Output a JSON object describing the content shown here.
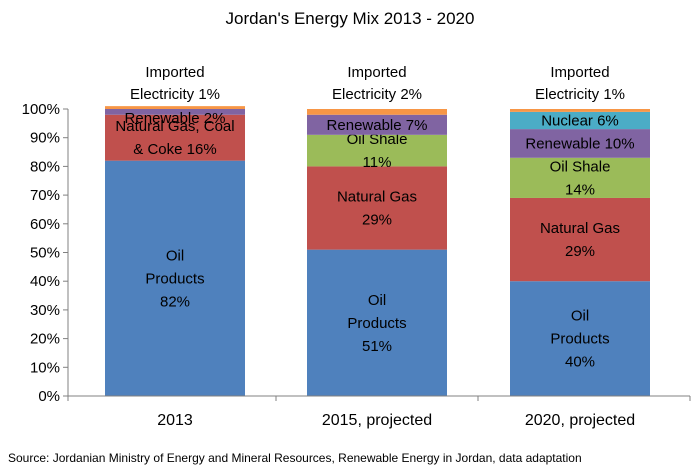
{
  "chart_data": {
    "type": "bar",
    "stacked": true,
    "title": "Jordan's Energy Mix 2013 - 2020",
    "xlabel": "",
    "ylabel": "",
    "ylim": [
      0,
      100
    ],
    "y_ticks": [
      "0%",
      "10%",
      "20%",
      "30%",
      "40%",
      "50%",
      "60%",
      "70%",
      "80%",
      "90%",
      "100%"
    ],
    "grid": false,
    "legend": "none",
    "categories": [
      "2013",
      "2015, projected",
      "2020, projected"
    ],
    "series": [
      {
        "key": "oil",
        "color": "#4f81bd",
        "values": [
          82,
          51,
          40
        ],
        "labels": [
          [
            "Oil",
            "Products",
            "82%"
          ],
          [
            "Oil",
            "Products",
            "51%"
          ],
          [
            "Oil",
            "Products",
            "40%"
          ]
        ]
      },
      {
        "key": "gas",
        "color": "#c0504d",
        "values": [
          16,
          29,
          29
        ],
        "labels": [
          [
            "Natural Gas, Coal",
            "& Coke 16%"
          ],
          [
            "Natural Gas",
            "29%"
          ],
          [
            "Natural Gas",
            "29%"
          ]
        ]
      },
      {
        "key": "shale",
        "color": "#9bbb59",
        "values": [
          0,
          11,
          14
        ],
        "labels": [
          [],
          [
            "Oil Shale",
            "11%"
          ],
          [
            "Oil Shale",
            "14%"
          ]
        ]
      },
      {
        "key": "renewable",
        "color": "#8064a2",
        "values": [
          2,
          7,
          10
        ],
        "labels": [
          [
            "Renewable 2%"
          ],
          [
            "Renewable 7%"
          ],
          [
            "Renewable 10%"
          ]
        ]
      },
      {
        "key": "nuclear",
        "color": "#4bacc6",
        "values": [
          0,
          0,
          6
        ],
        "labels": [
          [],
          [],
          [
            "Nuclear 6%"
          ]
        ]
      },
      {
        "key": "imported",
        "color": "#f79646",
        "values": [
          1,
          2,
          1
        ],
        "labels": [
          [
            "Imported",
            "Electricity 1%"
          ],
          [
            "Imported",
            "Electricity 2%"
          ],
          [
            "Imported",
            "Electricity 1%"
          ]
        ]
      }
    ]
  },
  "source": "Source: Jordanian Ministry of Energy and Mineral Resources, Renewable Energy in Jordan, data adaptation"
}
